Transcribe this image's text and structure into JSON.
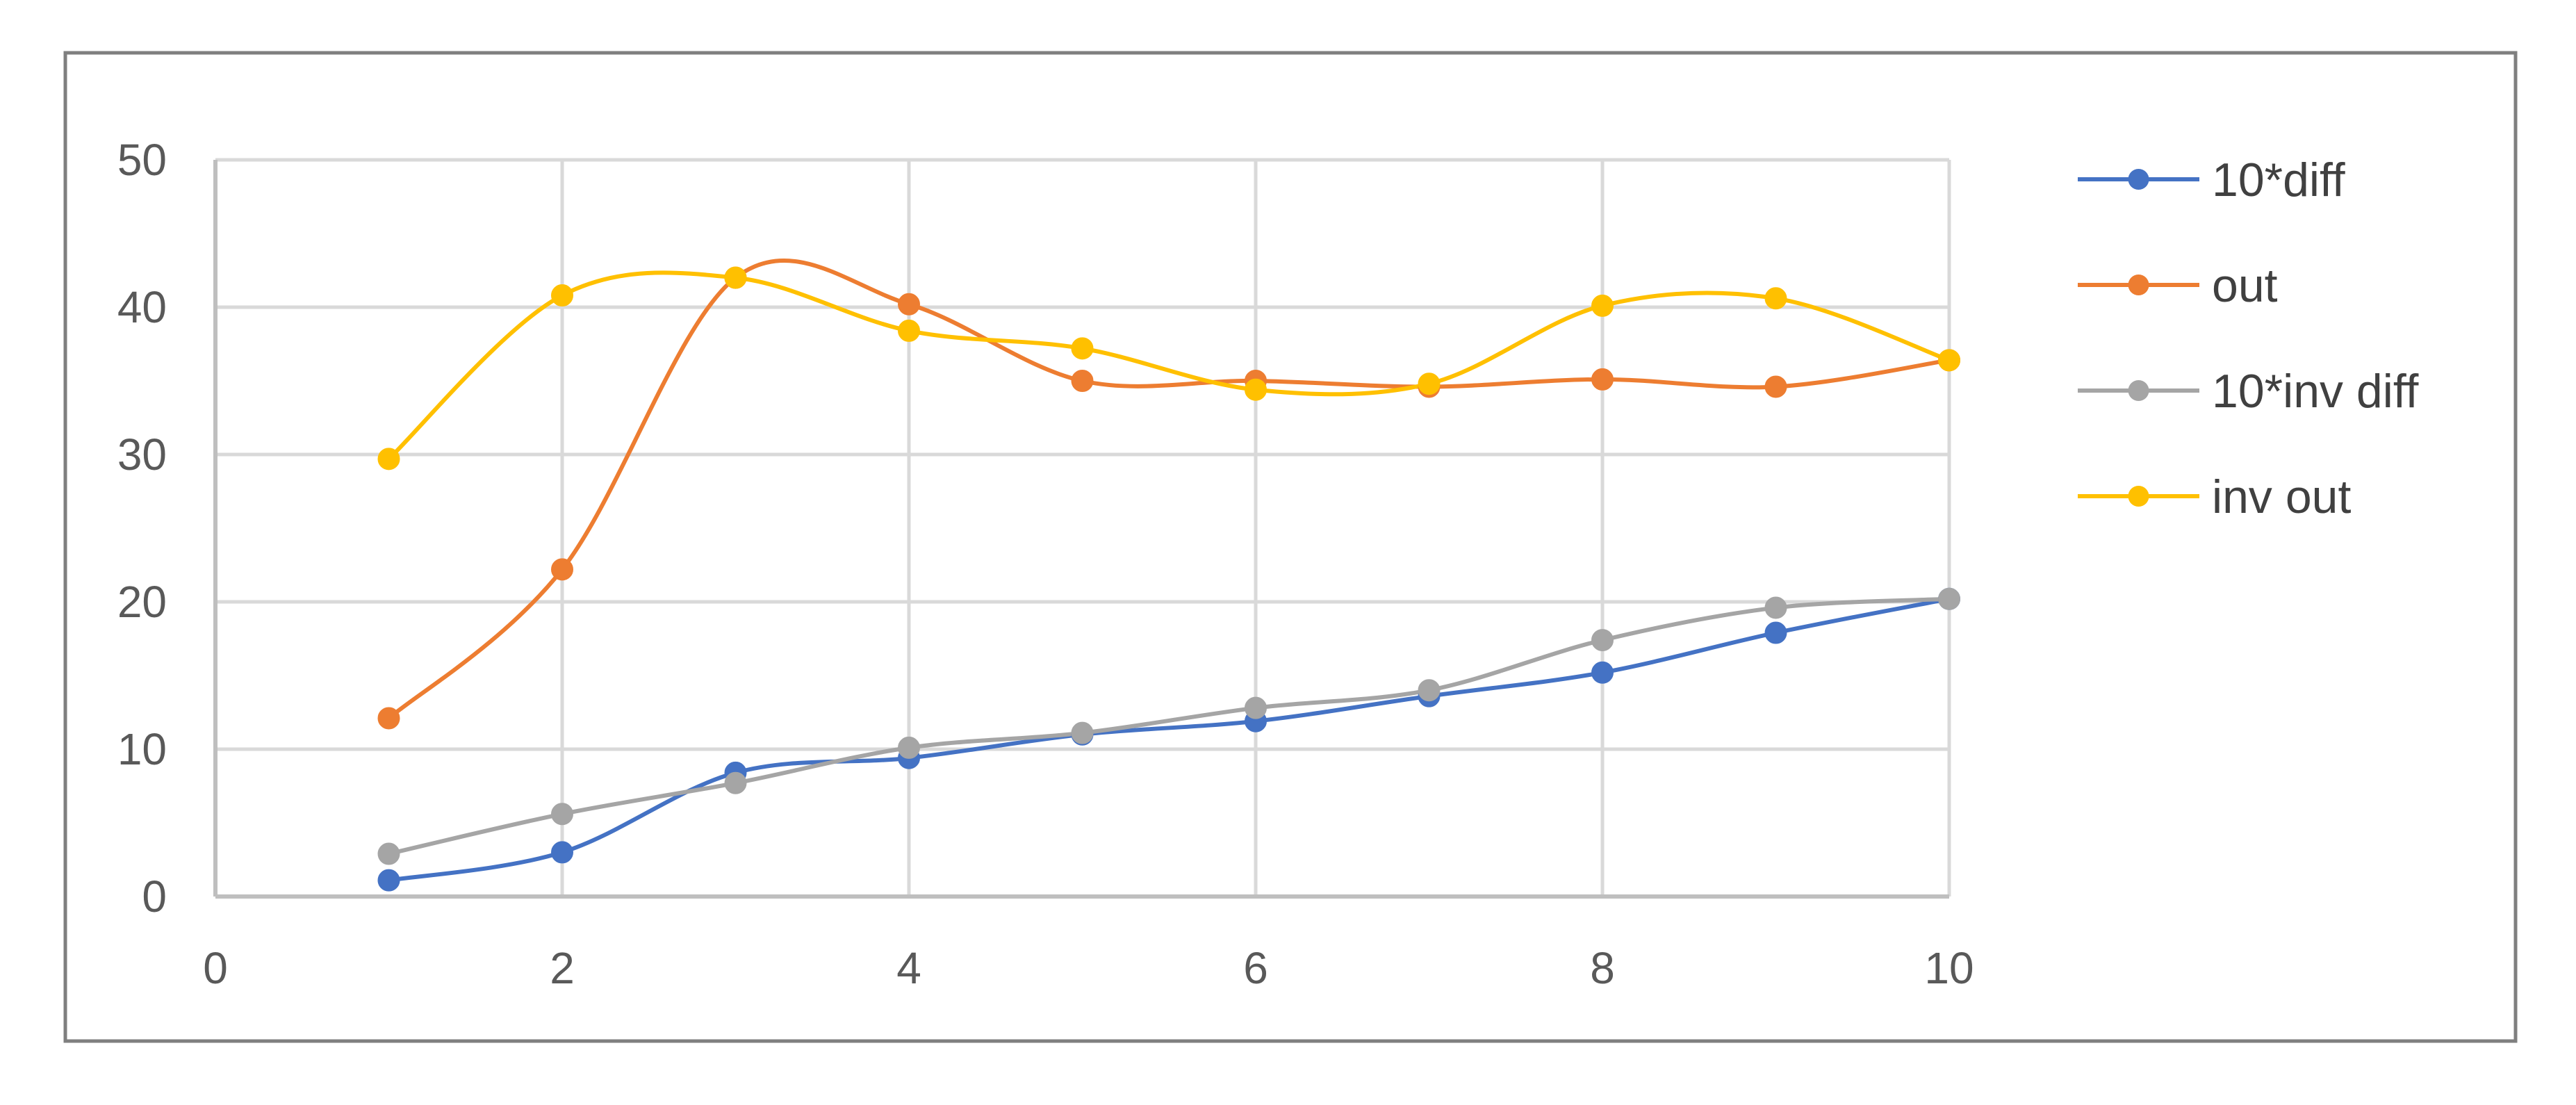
{
  "chart_data": {
    "type": "scatter",
    "style": "smooth-lines-with-markers",
    "title": "",
    "xlabel": "",
    "ylabel": "",
    "xlim": [
      0,
      10
    ],
    "ylim": [
      0,
      50
    ],
    "x_ticks": [
      0,
      2,
      4,
      6,
      8,
      10
    ],
    "y_ticks": [
      0,
      10,
      20,
      30,
      40,
      50
    ],
    "x_tick_labels": [
      "0",
      "2",
      "4",
      "6",
      "8",
      "10"
    ],
    "y_tick_labels": [
      "0",
      "10",
      "20",
      "30",
      "40",
      "50"
    ],
    "grid": true,
    "legend_position": "right",
    "series": [
      {
        "name": "10*diff",
        "color": "#4472C4",
        "x": [
          1,
          2,
          3,
          4,
          5,
          6,
          7,
          8,
          9,
          10
        ],
        "y": [
          1.1,
          3.0,
          8.4,
          9.4,
          11.0,
          11.9,
          13.6,
          15.2,
          17.9,
          20.2
        ]
      },
      {
        "name": "out",
        "color": "#ED7D31",
        "x": [
          1,
          2,
          3,
          4,
          5,
          6,
          7,
          8,
          9,
          10
        ],
        "y": [
          12.1,
          22.2,
          42.0,
          40.2,
          35.0,
          35.0,
          34.6,
          35.1,
          34.6,
          36.4
        ]
      },
      {
        "name": "10*inv diff",
        "color": "#A5A5A5",
        "x": [
          1,
          2,
          3,
          4,
          5,
          6,
          7,
          8,
          9,
          10
        ],
        "y": [
          2.9,
          5.6,
          7.7,
          10.1,
          11.1,
          12.8,
          14.0,
          17.4,
          19.6,
          20.2
        ]
      },
      {
        "name": "inv out",
        "color": "#FFC000",
        "x": [
          1,
          2,
          3,
          4,
          5,
          6,
          7,
          8,
          9,
          10
        ],
        "y": [
          29.7,
          40.8,
          42.0,
          38.4,
          37.2,
          34.4,
          34.8,
          40.1,
          40.6,
          36.4
        ]
      }
    ]
  }
}
